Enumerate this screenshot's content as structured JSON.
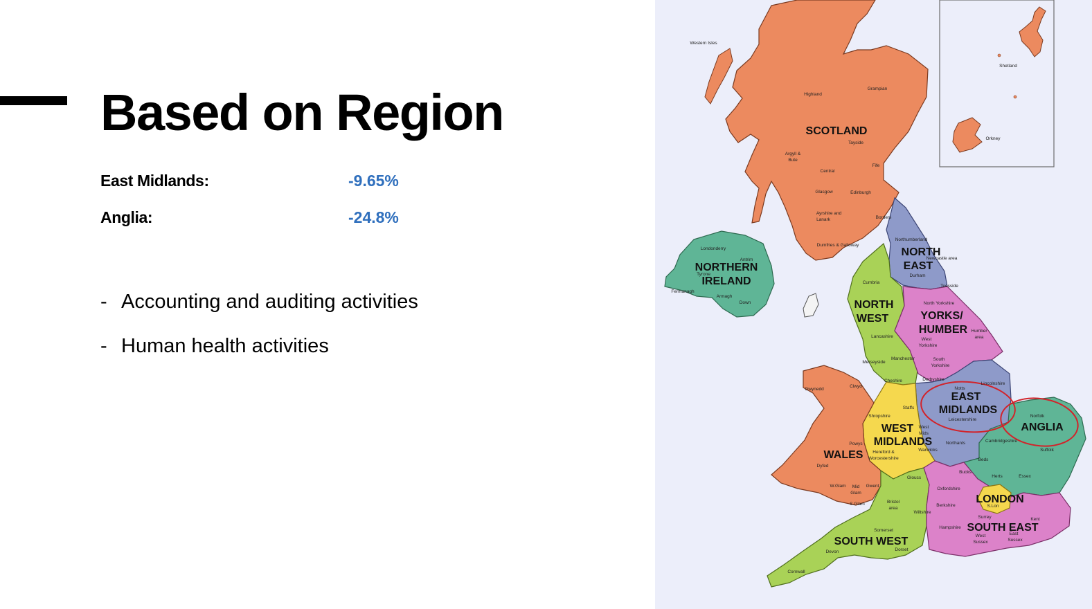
{
  "slide": {
    "title": "Based on Region",
    "stats": [
      {
        "label": "East Midlands:",
        "value": "-9.65%"
      },
      {
        "label": "Anglia:",
        "value": "-24.8%"
      }
    ],
    "bullets": [
      {
        "marker": "-",
        "text": "Accounting and auditing activities"
      },
      {
        "marker": "-",
        "text": "Human health activities"
      }
    ],
    "colors": {
      "value_text": "#2f6fbd",
      "highlight_circle": "#d2232a"
    }
  },
  "map": {
    "region_labels": {
      "scotland": "SCOTLAND",
      "northern_ireland_1": "NORTHERN",
      "northern_ireland_2": "IRELAND",
      "north_east_1": "NORTH",
      "north_east_2": "EAST",
      "north_west_1": "NORTH",
      "north_west_2": "WEST",
      "yorks_1": "YORKS/",
      "yorks_2": "HUMBER",
      "east_midlands_1": "EAST",
      "east_midlands_2": "MIDLANDS",
      "anglia": "ANGLIA",
      "west_midlands_1": "WEST",
      "west_midlands_2": "MIDLANDS",
      "wales": "WALES",
      "london": "LONDON",
      "south_east": "SOUTH EAST",
      "south_west": "SOUTH WEST"
    },
    "place_labels": {
      "western_isles": "Western Isles",
      "shetland": "Shetland",
      "orkney": "Orkney",
      "highland": "Highland",
      "grampian": "Grampian",
      "tayside": "Tayside",
      "argyll": "Argyll &",
      "bute": "Bute",
      "central": "Central",
      "fife": "Fife",
      "glasgow": "Glasgow",
      "edinburgh": "Edinburgh",
      "ayrshire": "Ayrshire and",
      "lanark": "Lanark",
      "borders": "Borders",
      "dumfries": "Dumfries & Galloway",
      "londonderry": "Londonderry",
      "antrim": "Antrim",
      "tyrone": "Tyrone",
      "fermanagh": "Fermanagh",
      "armagh": "Armagh",
      "down": "Down",
      "northumberland": "Northumberland",
      "newcastle": "Newcastle area",
      "durham": "Durham",
      "teesside": "Teesside",
      "cumbria": "Cumbria",
      "north_yorkshire": "North Yorkshire",
      "humber": "Humber",
      "humber_area": "area",
      "west_yorkshire": "West",
      "west_yorkshire_2": "Yorkshire",
      "south_yorkshire": "South",
      "south_yorkshire_2": "Yorkshire",
      "lancashire": "Lancashire",
      "merseyside": "Merseyside",
      "manchester": "Manchester",
      "cheshire": "Cheshire",
      "derbyshire": "Derbyshire",
      "notts": "Notts",
      "lincolnshire": "Lincolnshire",
      "leicestershire": "Leicestershire",
      "northants": "Northants",
      "norfolk": "Norfolk",
      "suffolk": "Suffolk",
      "cambridgeshire": "Cambridgeshire",
      "gwynedd": "Gwynedd",
      "clwyd": "Clwyd",
      "powys": "Powys",
      "dyfed": "Dyfed",
      "w_glam": "W.Glam",
      "mid_glam": "Mid",
      "mid_glam_2": "Glam",
      "s_glam": "S.Glam",
      "gwent": "Gwent",
      "shropshire": "Shropshire",
      "staffs": "Staffs",
      "west_mids": "West",
      "west_mids_2": "Mids",
      "warwicks": "Warwicks",
      "hereford": "Hereford &",
      "worcestershire": "Worcestershire",
      "gloucs": "Gloucs",
      "beds": "Beds",
      "herts": "Herts",
      "essex": "Essex",
      "bucks": "Bucks",
      "oxfordshire": "Oxfordshire",
      "berkshire": "Berkshire",
      "s_lon": "S.Lon",
      "surrey": "Surrey",
      "kent": "Kent",
      "hampshire": "Hampshire",
      "west_sussex": "West",
      "west_sussex_2": "Sussex",
      "east_sussex": "East",
      "east_sussex_2": "Sussex",
      "bristol": "Bristol",
      "bristol_area": "area",
      "wiltshire": "Wiltshire",
      "somerset": "Somerset",
      "devon": "Devon",
      "dorset": "Dorset",
      "cornwall": "Cornwall"
    },
    "colors": {
      "scotland": "#ec8a5f",
      "northern_ireland": "#5fb596",
      "north_east": "#8e9ac9",
      "north_west": "#a9d257",
      "yorks_humber": "#dc82c9",
      "east_midlands": "#8e9ac9",
      "anglia": "#5fb596",
      "west_midlands": "#f5d84e",
      "wales": "#ec8a5f",
      "london": "#f5d84e",
      "south_east": "#dc82c9",
      "south_west": "#a9d257",
      "sea": "#eceefa"
    }
  }
}
